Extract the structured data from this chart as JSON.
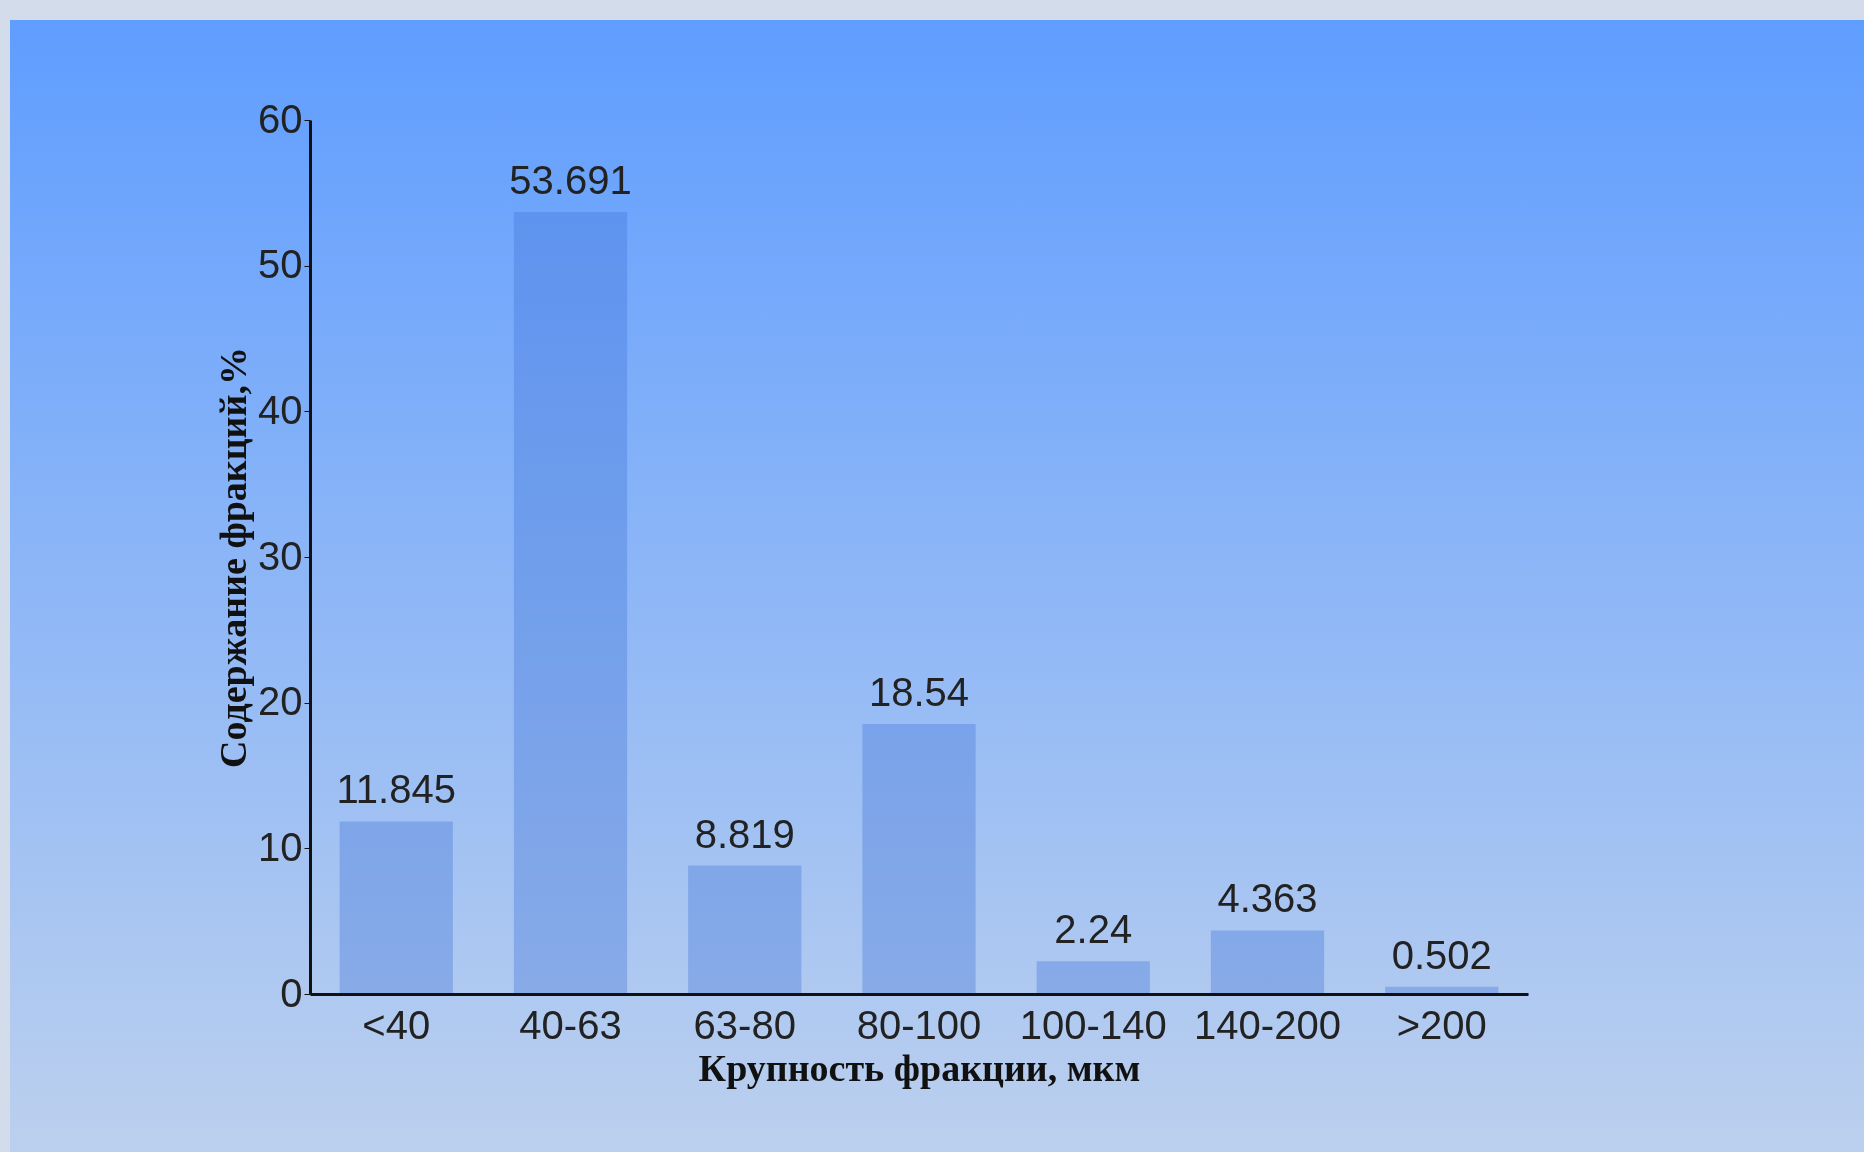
{
  "chart_data": {
    "type": "bar",
    "xlabel": "Крупность фракции, мкм",
    "ylabel": "Содержание фракций,%",
    "categories": [
      "<40",
      "40-63",
      "63-80",
      "80-100",
      "100-140",
      "140-200",
      ">200"
    ],
    "values": [
      11.845,
      53.691,
      8.819,
      18.54,
      2.24,
      4.363,
      0.502
    ],
    "color": "#3f74d8",
    "ylim": [
      0,
      60
    ],
    "yticks": [
      0,
      10,
      20,
      30,
      40,
      50,
      60
    ],
    "data_labels": true
  }
}
